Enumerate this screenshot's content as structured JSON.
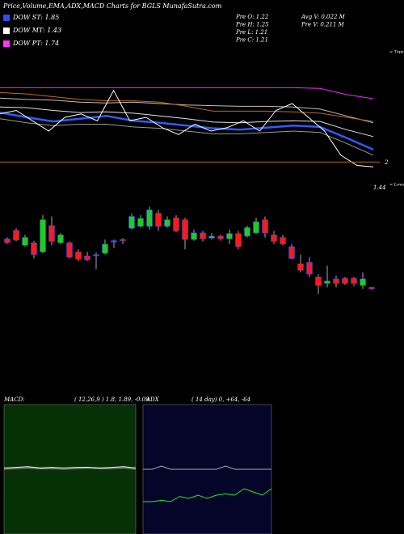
{
  "header": {
    "title": "Price,Volume,EMA,ADX,MACD Charts for BGLS MunafaSutra.com",
    "legend": [
      {
        "label": "DOW ST: 1.85",
        "color": "#2f4bff"
      },
      {
        "label": "DOW MT: 1.43",
        "color": "#ffffff"
      },
      {
        "label": "DOW PT: 1.74",
        "color": "#ff33ff"
      }
    ],
    "info": [
      "Pre O: 1.22",
      "Pre H: 1.25",
      "Pre L: 1.21",
      "Pre C: 1.21",
      "Avg V: 0.022 M",
      "Pre V: 0.211 M"
    ]
  },
  "chart_data": [
    {
      "type": "line",
      "ylim": [
        1.0,
        3.0
      ],
      "annotations": [
        "< Tops",
        "2",
        "1.44",
        "< Lows"
      ],
      "level": 1.35,
      "level_color": "#b8671a",
      "series": [
        {
          "color": "#ff22ff",
          "values": [
            2.43,
            2.43,
            2.43,
            2.43,
            2.43,
            2.43,
            2.43,
            2.43,
            2.43,
            2.43,
            2.43,
            2.43,
            2.42,
            2.33,
            2.27
          ]
        },
        {
          "color": "#bdbdbd",
          "values": [
            2.28,
            2.26,
            2.25,
            2.22,
            2.21,
            2.22,
            2.2,
            2.18,
            2.17,
            2.16,
            2.16,
            2.15,
            2.12,
            2.02,
            1.92
          ]
        },
        {
          "color": "#c06a1a",
          "values": [
            2.36,
            2.34,
            2.3,
            2.26,
            2.24,
            2.24,
            2.22,
            2.16,
            2.09,
            2.09,
            2.09,
            2.08,
            2.06,
            2.0,
            1.94
          ]
        },
        {
          "color": "#e0e0e0",
          "values": [
            2.15,
            2.14,
            2.1,
            2.07,
            2.08,
            2.06,
            2.02,
            1.98,
            1.93,
            1.92,
            1.94,
            1.95,
            1.94,
            1.82,
            1.72
          ]
        },
        {
          "color": "#2f5bff",
          "values": [
            2.07,
            2.0,
            1.94,
            1.98,
            2.02,
            1.95,
            1.92,
            1.88,
            1.84,
            1.82,
            1.85,
            1.88,
            1.86,
            1.7,
            1.53
          ]
        },
        {
          "color": "#9a9a9a",
          "values": [
            1.98,
            1.92,
            1.88,
            1.9,
            1.9,
            1.86,
            1.84,
            1.8,
            1.76,
            1.76,
            1.78,
            1.8,
            1.78,
            1.62,
            1.45
          ]
        },
        {
          "color": "#ffffff",
          "values": [
            2.05,
            2.1,
            1.95,
            1.8,
            2.0,
            2.05,
            1.95,
            2.39,
            1.95,
            2.0,
            1.85,
            1.75,
            1.9,
            1.8,
            1.85,
            1.95,
            1.8,
            2.1,
            2.2,
            2.0,
            1.8,
            1.45,
            1.3,
            1.28
          ]
        }
      ]
    },
    {
      "type": "candlestick",
      "ylim": [
        1.0,
        2.6
      ],
      "up_color": "#1fcc1f",
      "down_color": "#ff1a1a",
      "open": [
        1.86,
        1.99,
        1.76,
        1.8,
        1.66,
        2.06,
        1.8,
        1.8,
        1.66,
        1.6,
        1.62,
        1.64,
        1.83,
        1.85,
        2.02,
        2.05,
        2.05,
        2.25,
        2.05,
        2.18,
        2.15,
        1.85,
        1.95,
        1.87,
        1.9,
        1.86,
        1.94,
        1.9,
        1.95,
        2.15,
        1.92,
        1.88,
        1.74,
        1.48,
        1.5,
        1.28,
        1.18,
        1.25,
        1.26,
        1.26,
        1.15,
        1.12
      ],
      "high": [
        1.88,
        2.02,
        1.92,
        1.83,
        2.22,
        2.2,
        1.95,
        1.82,
        1.7,
        1.66,
        1.65,
        1.85,
        1.85,
        1.87,
        2.25,
        2.22,
        2.35,
        2.3,
        2.2,
        2.22,
        2.18,
        2.0,
        1.98,
        1.95,
        1.92,
        2.0,
        1.98,
        2.06,
        2.18,
        2.2,
        1.98,
        1.92,
        1.78,
        1.62,
        1.58,
        1.32,
        1.45,
        1.3,
        1.28,
        1.28,
        1.35,
        1.13
      ],
      "low": [
        1.78,
        1.82,
        1.74,
        1.56,
        1.64,
        1.76,
        1.78,
        1.56,
        1.52,
        1.52,
        1.4,
        1.62,
        1.72,
        1.78,
        2.0,
        2.03,
        2.0,
        1.98,
        2.03,
        1.96,
        1.7,
        1.83,
        1.82,
        1.85,
        1.83,
        1.78,
        1.7,
        1.88,
        1.93,
        1.88,
        1.78,
        1.76,
        1.55,
        1.35,
        1.28,
        1.02,
        1.12,
        1.12,
        1.16,
        1.14,
        1.1,
        1.08
      ],
      "close": [
        1.8,
        1.84,
        1.88,
        1.62,
        2.15,
        1.82,
        1.92,
        1.58,
        1.55,
        1.54,
        1.6,
        1.78,
        1.81,
        1.83,
        2.2,
        2.17,
        2.3,
        2.05,
        2.15,
        1.98,
        1.85,
        1.95,
        1.86,
        1.9,
        1.86,
        1.94,
        1.74,
        2.03,
        2.12,
        1.95,
        1.82,
        1.78,
        1.56,
        1.38,
        1.32,
        1.15,
        1.22,
        1.18,
        1.18,
        1.18,
        1.25,
        1.1
      ]
    },
    {
      "type": "line",
      "title": "MACD:",
      "subtitle": "( 12,26,9 ) 1.8, 1.89, -0.09",
      "ylim": [
        -1,
        1
      ],
      "background": "#063006",
      "series": [
        {
          "color": "#9a9a9a",
          "values": [
            0.0,
            0.01,
            0.02,
            0.01,
            0.01,
            0.0,
            0.01,
            0.02,
            0.01,
            0.01,
            0.02,
            0.0
          ]
        },
        {
          "color": "#ffffff",
          "values": [
            0.02,
            0.03,
            0.04,
            0.02,
            0.03,
            0.02,
            0.03,
            0.03,
            0.02,
            0.03,
            0.04,
            0.02
          ]
        }
      ]
    },
    {
      "type": "line",
      "title": "ADX",
      "subtitle": "( 14 day) 0, +64, -64",
      "ylim": [
        -1,
        1
      ],
      "background": "#05052a",
      "series": [
        {
          "color": "#aaaaaa",
          "values": [
            0,
            0,
            0.05,
            0,
            0,
            0,
            0,
            0,
            0,
            0.05,
            0,
            0,
            0,
            0,
            0
          ]
        },
        {
          "color": "#22ee22",
          "values": [
            -0.5,
            -0.5,
            -0.48,
            -0.5,
            -0.42,
            -0.45,
            -0.4,
            -0.45,
            -0.4,
            -0.38,
            -0.4,
            -0.3,
            -0.35,
            -0.4,
            -0.3
          ]
        }
      ]
    }
  ]
}
